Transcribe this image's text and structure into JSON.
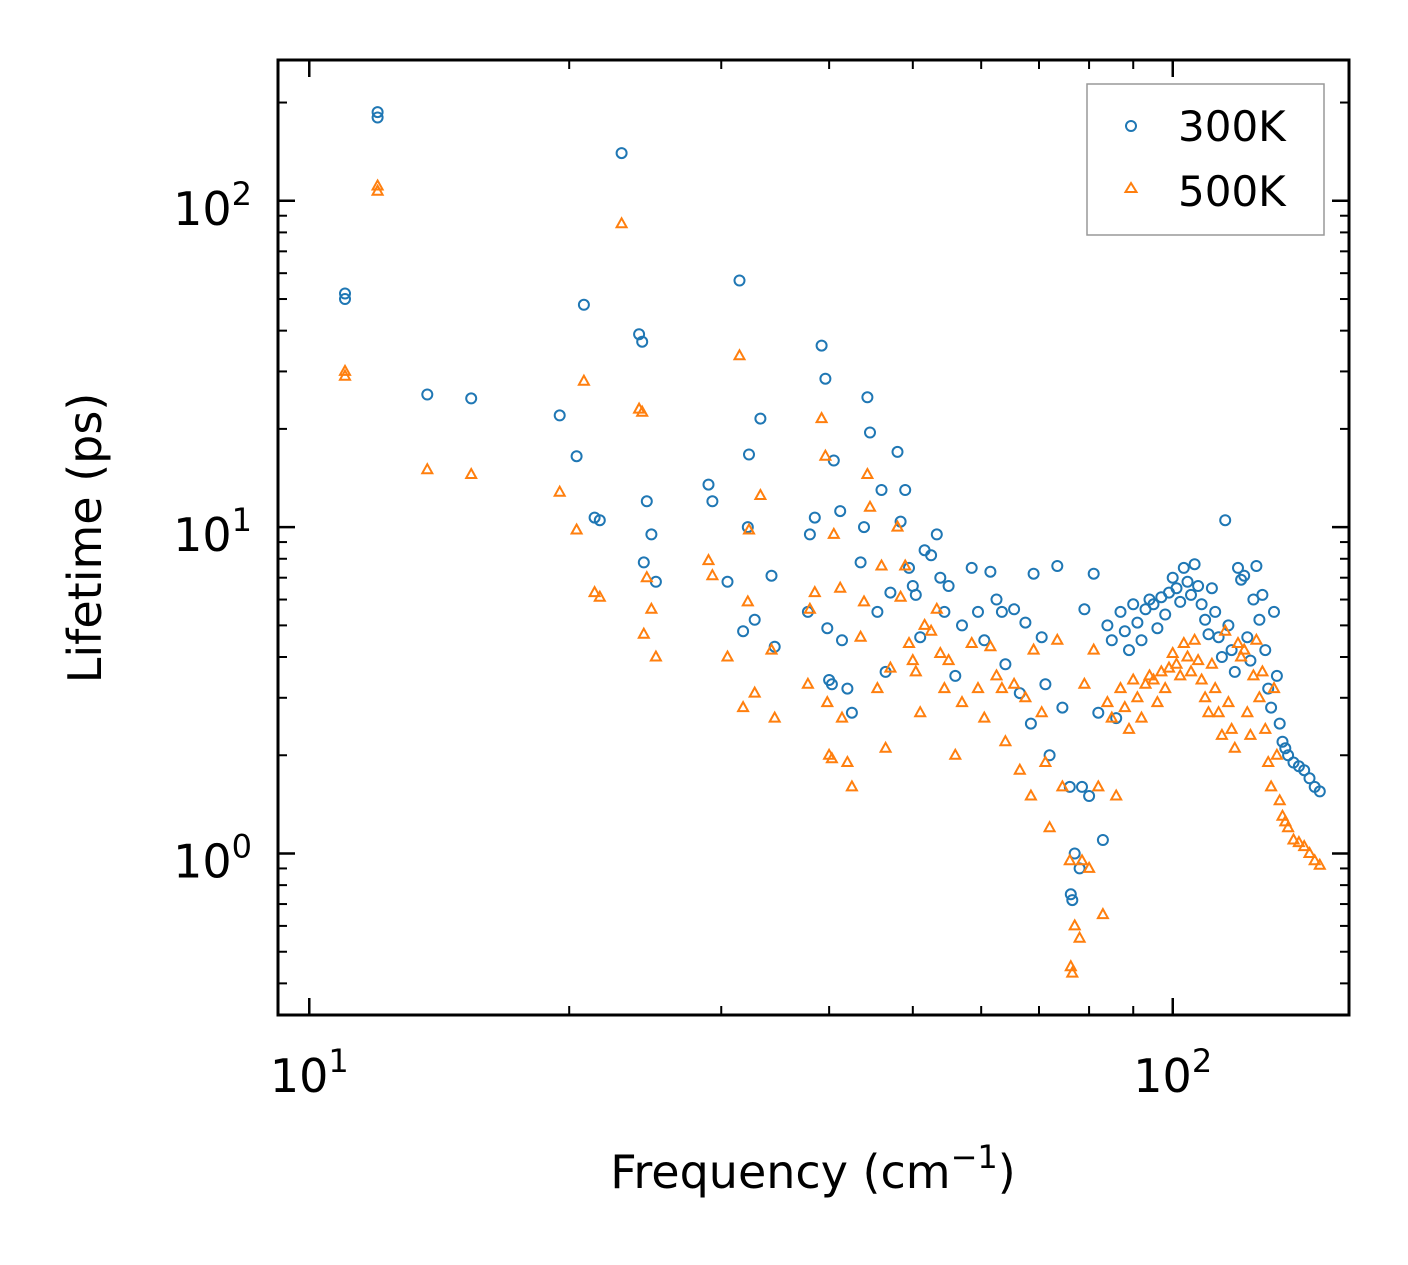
{
  "chart_data": {
    "type": "scatter",
    "xscale": "log",
    "yscale": "log",
    "xlabel": "Frequency (cm",
    "xlabel_sup": "−1",
    "xlabel_end": ")",
    "ylabel": "Lifetime (ps)",
    "xlim": [
      9.2,
      160
    ],
    "ylim": [
      0.32,
      270
    ],
    "xticks": [
      {
        "base": "10",
        "exp": "1",
        "value": 10
      },
      {
        "base": "10",
        "exp": "2",
        "value": 100
      }
    ],
    "yticks": [
      {
        "base": "10",
        "exp": "0",
        "value": 1
      },
      {
        "base": "10",
        "exp": "1",
        "value": 10
      },
      {
        "base": "10",
        "exp": "2",
        "value": 100
      }
    ],
    "legend_position": "top-right",
    "series": [
      {
        "name": "300K",
        "marker": "circle",
        "color": "#1f77b4",
        "x": [
          11.0,
          11.0,
          12.0,
          12.0,
          13.7,
          15.4,
          19.5,
          20.4,
          20.8,
          21.4,
          21.7,
          23.0,
          24.1,
          24.3,
          24.4,
          24.6,
          24.9,
          25.2,
          29.0,
          29.3,
          30.5,
          31.5,
          31.8,
          32.2,
          32.3,
          32.8,
          33.3,
          34.3,
          34.6,
          37.8,
          38.0,
          38.5,
          39.2,
          39.6,
          39.8,
          40.0,
          40.3,
          40.5,
          41.2,
          41.4,
          42.0,
          42.5,
          43.5,
          43.9,
          44.3,
          44.6,
          45.5,
          46.0,
          46.5,
          47.1,
          48.0,
          48.4,
          49.0,
          49.5,
          50.0,
          50.4,
          51.0,
          51.6,
          52.5,
          53.3,
          53.8,
          54.4,
          55.0,
          56.0,
          57.0,
          58.5,
          59.5,
          60.5,
          61.5,
          62.5,
          63.4,
          64.0,
          65.5,
          66.5,
          67.5,
          68.5,
          69.0,
          70.5,
          71.2,
          72.0,
          73.5,
          74.5,
          76.0,
          76.2,
          76.5,
          77.0,
          78.0,
          78.5,
          79.0,
          80.0,
          81.0,
          82.0,
          83.0,
          84.0,
          85.0,
          86.0,
          87.0,
          88.0,
          89.0,
          90.0,
          91.0,
          92.0,
          93.0,
          94.0,
          95.0,
          96.0,
          97.0,
          98.0,
          99.0,
          100.0,
          101.0,
          102.0,
          103.0,
          104.0,
          105.0,
          106.0,
          107.0,
          108.0,
          109.0,
          110.0,
          111.0,
          112.0,
          113.0,
          114.0,
          115.0,
          116.0,
          117.0,
          118.0,
          119.0,
          120.0,
          121.0,
          122.0,
          123.0,
          124.0,
          125.0,
          126.0,
          127.0,
          128.0,
          129.0,
          130.0,
          131.0,
          132.0,
          133.0,
          134.0,
          135.0,
          136.0,
          138.0,
          140.0,
          142.0,
          144.0,
          146.0,
          148.0
        ],
        "y": [
          50,
          52,
          180,
          187,
          25.5,
          24.8,
          22,
          16.5,
          48,
          10.7,
          10.5,
          140,
          39,
          37,
          7.8,
          12,
          9.5,
          6.8,
          13.5,
          12,
          6.8,
          57,
          4.8,
          10,
          16.7,
          5.2,
          21.5,
          7.1,
          4.3,
          5.5,
          9.5,
          10.7,
          36,
          28.5,
          4.9,
          3.4,
          3.3,
          16,
          11.2,
          4.5,
          3.2,
          2.7,
          7.8,
          10,
          25,
          19.5,
          5.5,
          13,
          3.6,
          6.3,
          17,
          10.4,
          13,
          7.5,
          6.6,
          6.2,
          4.6,
          8.5,
          8.2,
          9.5,
          7,
          5.5,
          6.6,
          3.5,
          5,
          7.5,
          5.5,
          4.5,
          7.3,
          6,
          5.5,
          3.8,
          5.6,
          3.1,
          5.1,
          2.5,
          7.2,
          4.6,
          3.3,
          2.0,
          7.6,
          2.8,
          1.6,
          0.75,
          0.72,
          1.0,
          0.9,
          1.6,
          5.6,
          1.5,
          7.2,
          2.7,
          1.1,
          5.0,
          4.5,
          2.6,
          5.5,
          4.8,
          4.2,
          5.8,
          5.1,
          4.5,
          5.6,
          6.0,
          5.8,
          4.9,
          6.1,
          5.4,
          6.3,
          7.0,
          6.5,
          5.9,
          7.5,
          6.8,
          6.2,
          7.7,
          6.6,
          5.8,
          5.2,
          4.7,
          6.5,
          5.5,
          4.6,
          4.0,
          10.5,
          5.0,
          4.2,
          3.6,
          7.5,
          6.9,
          7.1,
          4.6,
          3.9,
          6.0,
          7.6,
          5.2,
          6.2,
          4.2,
          3.2,
          2.8,
          5.5,
          3.5,
          2.5,
          2.2,
          2.1,
          2.0,
          1.9,
          1.85,
          1.8,
          1.7,
          1.6,
          1.55
        ]
      },
      {
        "name": "500K",
        "marker": "triangle",
        "color": "#ff7f0e",
        "x": [
          11.0,
          11.0,
          12.0,
          12.0,
          13.7,
          15.4,
          19.5,
          20.4,
          20.8,
          21.4,
          21.7,
          23.0,
          24.1,
          24.3,
          24.4,
          24.6,
          24.9,
          25.2,
          29.0,
          29.3,
          30.5,
          31.5,
          31.8,
          32.2,
          32.3,
          32.8,
          33.3,
          34.3,
          34.6,
          37.8,
          38.0,
          38.5,
          39.2,
          39.6,
          39.8,
          40.0,
          40.3,
          40.5,
          41.2,
          41.4,
          42.0,
          42.5,
          43.5,
          43.9,
          44.3,
          44.6,
          45.5,
          46.0,
          46.5,
          47.1,
          48.0,
          48.4,
          49.0,
          49.5,
          50.0,
          50.4,
          51.0,
          51.6,
          52.5,
          53.3,
          53.8,
          54.4,
          55.0,
          56.0,
          57.0,
          58.5,
          59.5,
          60.5,
          61.5,
          62.5,
          63.4,
          64.0,
          65.5,
          66.5,
          67.5,
          68.5,
          69.0,
          70.5,
          71.2,
          72.0,
          73.5,
          74.5,
          76.0,
          76.2,
          76.5,
          77.0,
          78.0,
          78.5,
          79.0,
          80.0,
          81.0,
          82.0,
          83.0,
          84.0,
          85.0,
          86.0,
          87.0,
          88.0,
          89.0,
          90.0,
          91.0,
          92.0,
          93.0,
          94.0,
          95.0,
          96.0,
          97.0,
          98.0,
          99.0,
          100.0,
          101.0,
          102.0,
          103.0,
          104.0,
          105.0,
          106.0,
          107.0,
          108.0,
          109.0,
          110.0,
          111.0,
          112.0,
          113.0,
          114.0,
          115.0,
          116.0,
          117.0,
          118.0,
          119.0,
          120.0,
          121.0,
          122.0,
          123.0,
          124.0,
          125.0,
          126.0,
          127.0,
          128.0,
          129.0,
          130.0,
          131.0,
          132.0,
          133.0,
          134.0,
          135.0,
          136.0,
          138.0,
          140.0,
          142.0,
          144.0,
          146.0,
          148.0
        ],
        "y": [
          29,
          30,
          107,
          111,
          15,
          14.5,
          12.8,
          9.8,
          28,
          6.3,
          6.1,
          85,
          23,
          22.5,
          4.7,
          7,
          5.6,
          4.0,
          7.9,
          7.1,
          4.0,
          33.5,
          2.8,
          5.9,
          9.8,
          3.1,
          12.5,
          4.2,
          2.6,
          3.3,
          5.6,
          6.3,
          21.5,
          16.5,
          2.9,
          2.0,
          1.95,
          9.5,
          6.5,
          2.6,
          1.9,
          1.6,
          4.6,
          5.9,
          14.5,
          11.5,
          3.2,
          7.6,
          2.1,
          3.7,
          10,
          6.1,
          7.6,
          4.4,
          3.9,
          3.6,
          2.7,
          5.0,
          4.8,
          5.6,
          4.1,
          3.2,
          3.9,
          2.0,
          2.9,
          4.4,
          3.2,
          2.6,
          4.3,
          3.5,
          3.2,
          2.2,
          3.3,
          1.8,
          3.0,
          1.5,
          4.2,
          2.7,
          1.9,
          1.2,
          4.5,
          1.6,
          0.95,
          0.45,
          0.43,
          0.6,
          0.55,
          0.95,
          3.3,
          0.9,
          4.2,
          1.6,
          0.65,
          2.9,
          2.6,
          1.5,
          3.2,
          2.8,
          2.4,
          3.4,
          3.0,
          2.6,
          3.3,
          3.5,
          3.4,
          2.9,
          3.6,
          3.2,
          3.7,
          4.1,
          3.8,
          3.5,
          4.4,
          4.0,
          3.6,
          4.5,
          3.9,
          3.4,
          3.0,
          2.7,
          3.8,
          3.2,
          2.7,
          2.3,
          4.8,
          2.9,
          2.4,
          2.1,
          4.4,
          4.0,
          4.2,
          2.7,
          2.3,
          3.5,
          4.5,
          3.0,
          3.6,
          2.4,
          1.9,
          1.6,
          3.2,
          2.0,
          1.45,
          1.3,
          1.25,
          1.2,
          1.1,
          1.08,
          1.05,
          1.0,
          0.95,
          0.92
        ]
      }
    ]
  }
}
